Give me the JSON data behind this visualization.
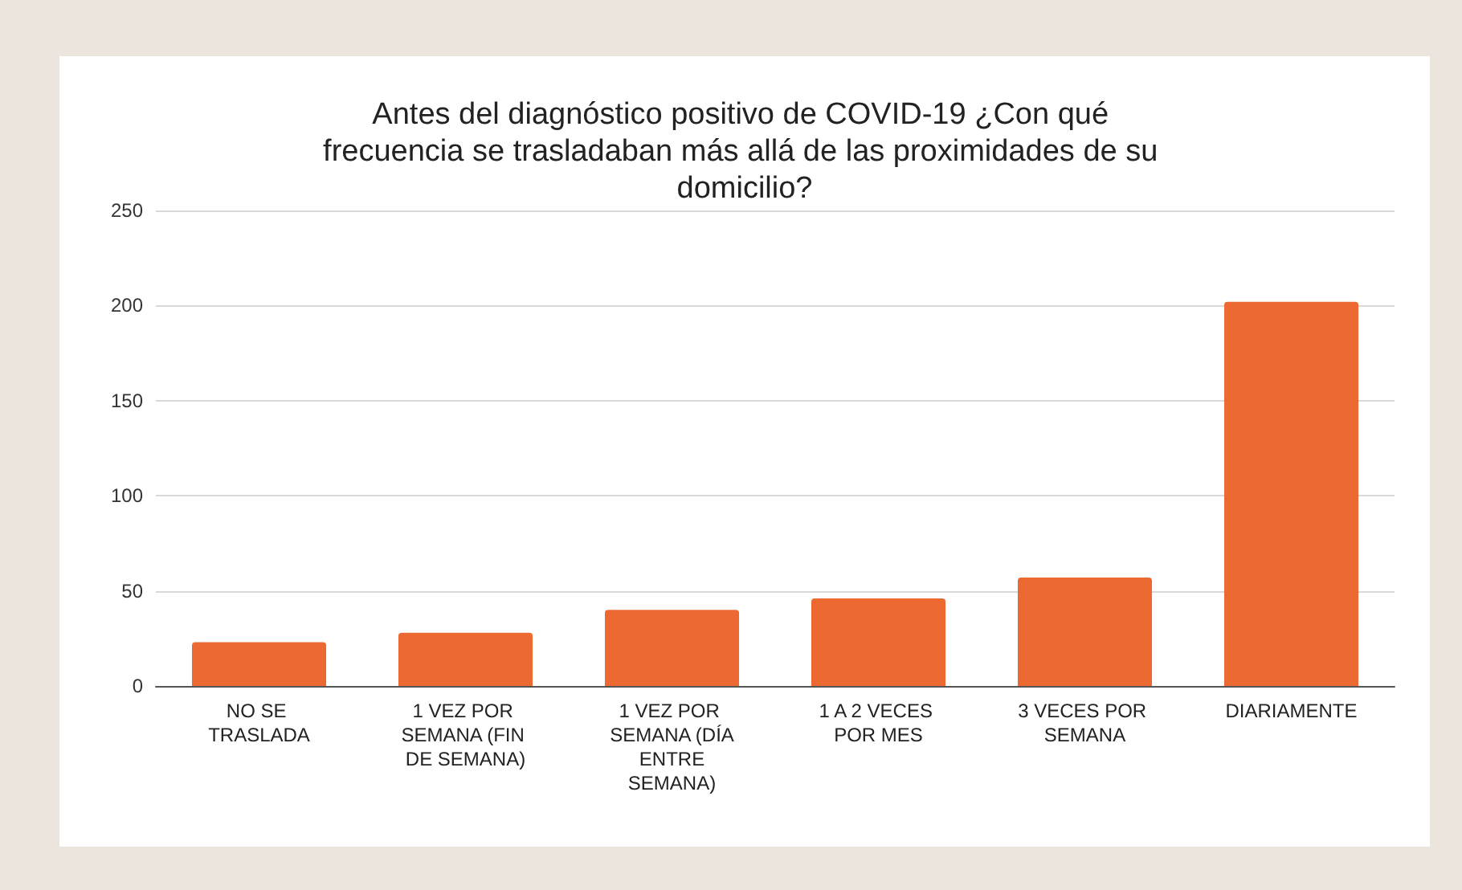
{
  "chart_data": {
    "type": "bar",
    "title": "Antes del diagnóstico positivo de COVID-19 ¿Con qué frecuencia se trasladaban más allá de las proximidades de su domicilio?",
    "categories": [
      "NO SE TRASLADA",
      "1 VEZ POR SEMANA (FIN DE SEMANA)",
      "1 VEZ POR SEMANA (DÍA ENTRE SEMANA)",
      "1 A 2 VECES POR MES",
      "3 VECES POR SEMANA",
      "DIARIAMENTE"
    ],
    "values": [
      23,
      28,
      40,
      46,
      57,
      202
    ],
    "color": "#ec6a32",
    "ylim": [
      0,
      250
    ],
    "yticks": [
      0,
      50,
      100,
      150,
      200,
      250
    ],
    "grid": "y"
  }
}
